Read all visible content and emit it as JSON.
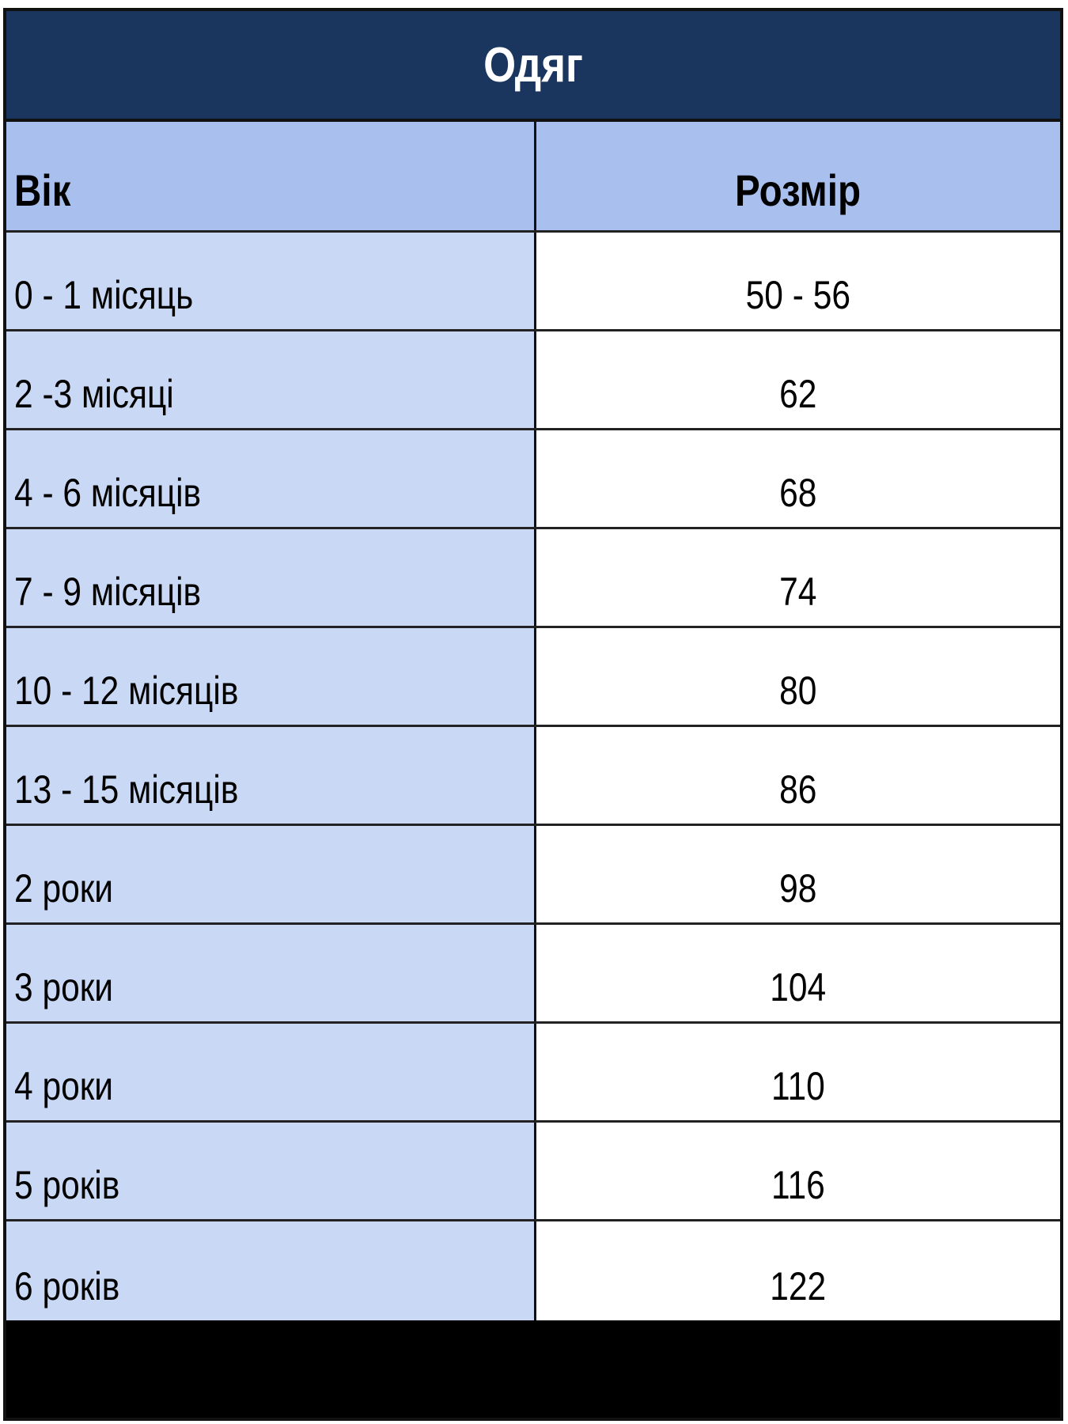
{
  "title": "Одяг",
  "columns": [
    "Вік",
    "Розмір"
  ],
  "rows": [
    [
      "0 - 1 місяць",
      "50 - 56"
    ],
    [
      "2 -3 місяці",
      "62"
    ],
    [
      "4 - 6 місяців",
      "68"
    ],
    [
      "7 - 9 місяців",
      "74"
    ],
    [
      "10 - 12 місяців",
      "80"
    ],
    [
      "13 - 15 місяців",
      "86"
    ],
    [
      "2 роки",
      "98"
    ],
    [
      "3 роки",
      "104"
    ],
    [
      "4 роки",
      "110"
    ],
    [
      "5 років",
      "116"
    ],
    [
      "6 років",
      "122"
    ]
  ],
  "colors": {
    "title_bg": "#1a365f",
    "header_bg": "#a9c0ee",
    "age_col_bg": "#c9d8f4",
    "size_col_bg": "#ffffff"
  }
}
